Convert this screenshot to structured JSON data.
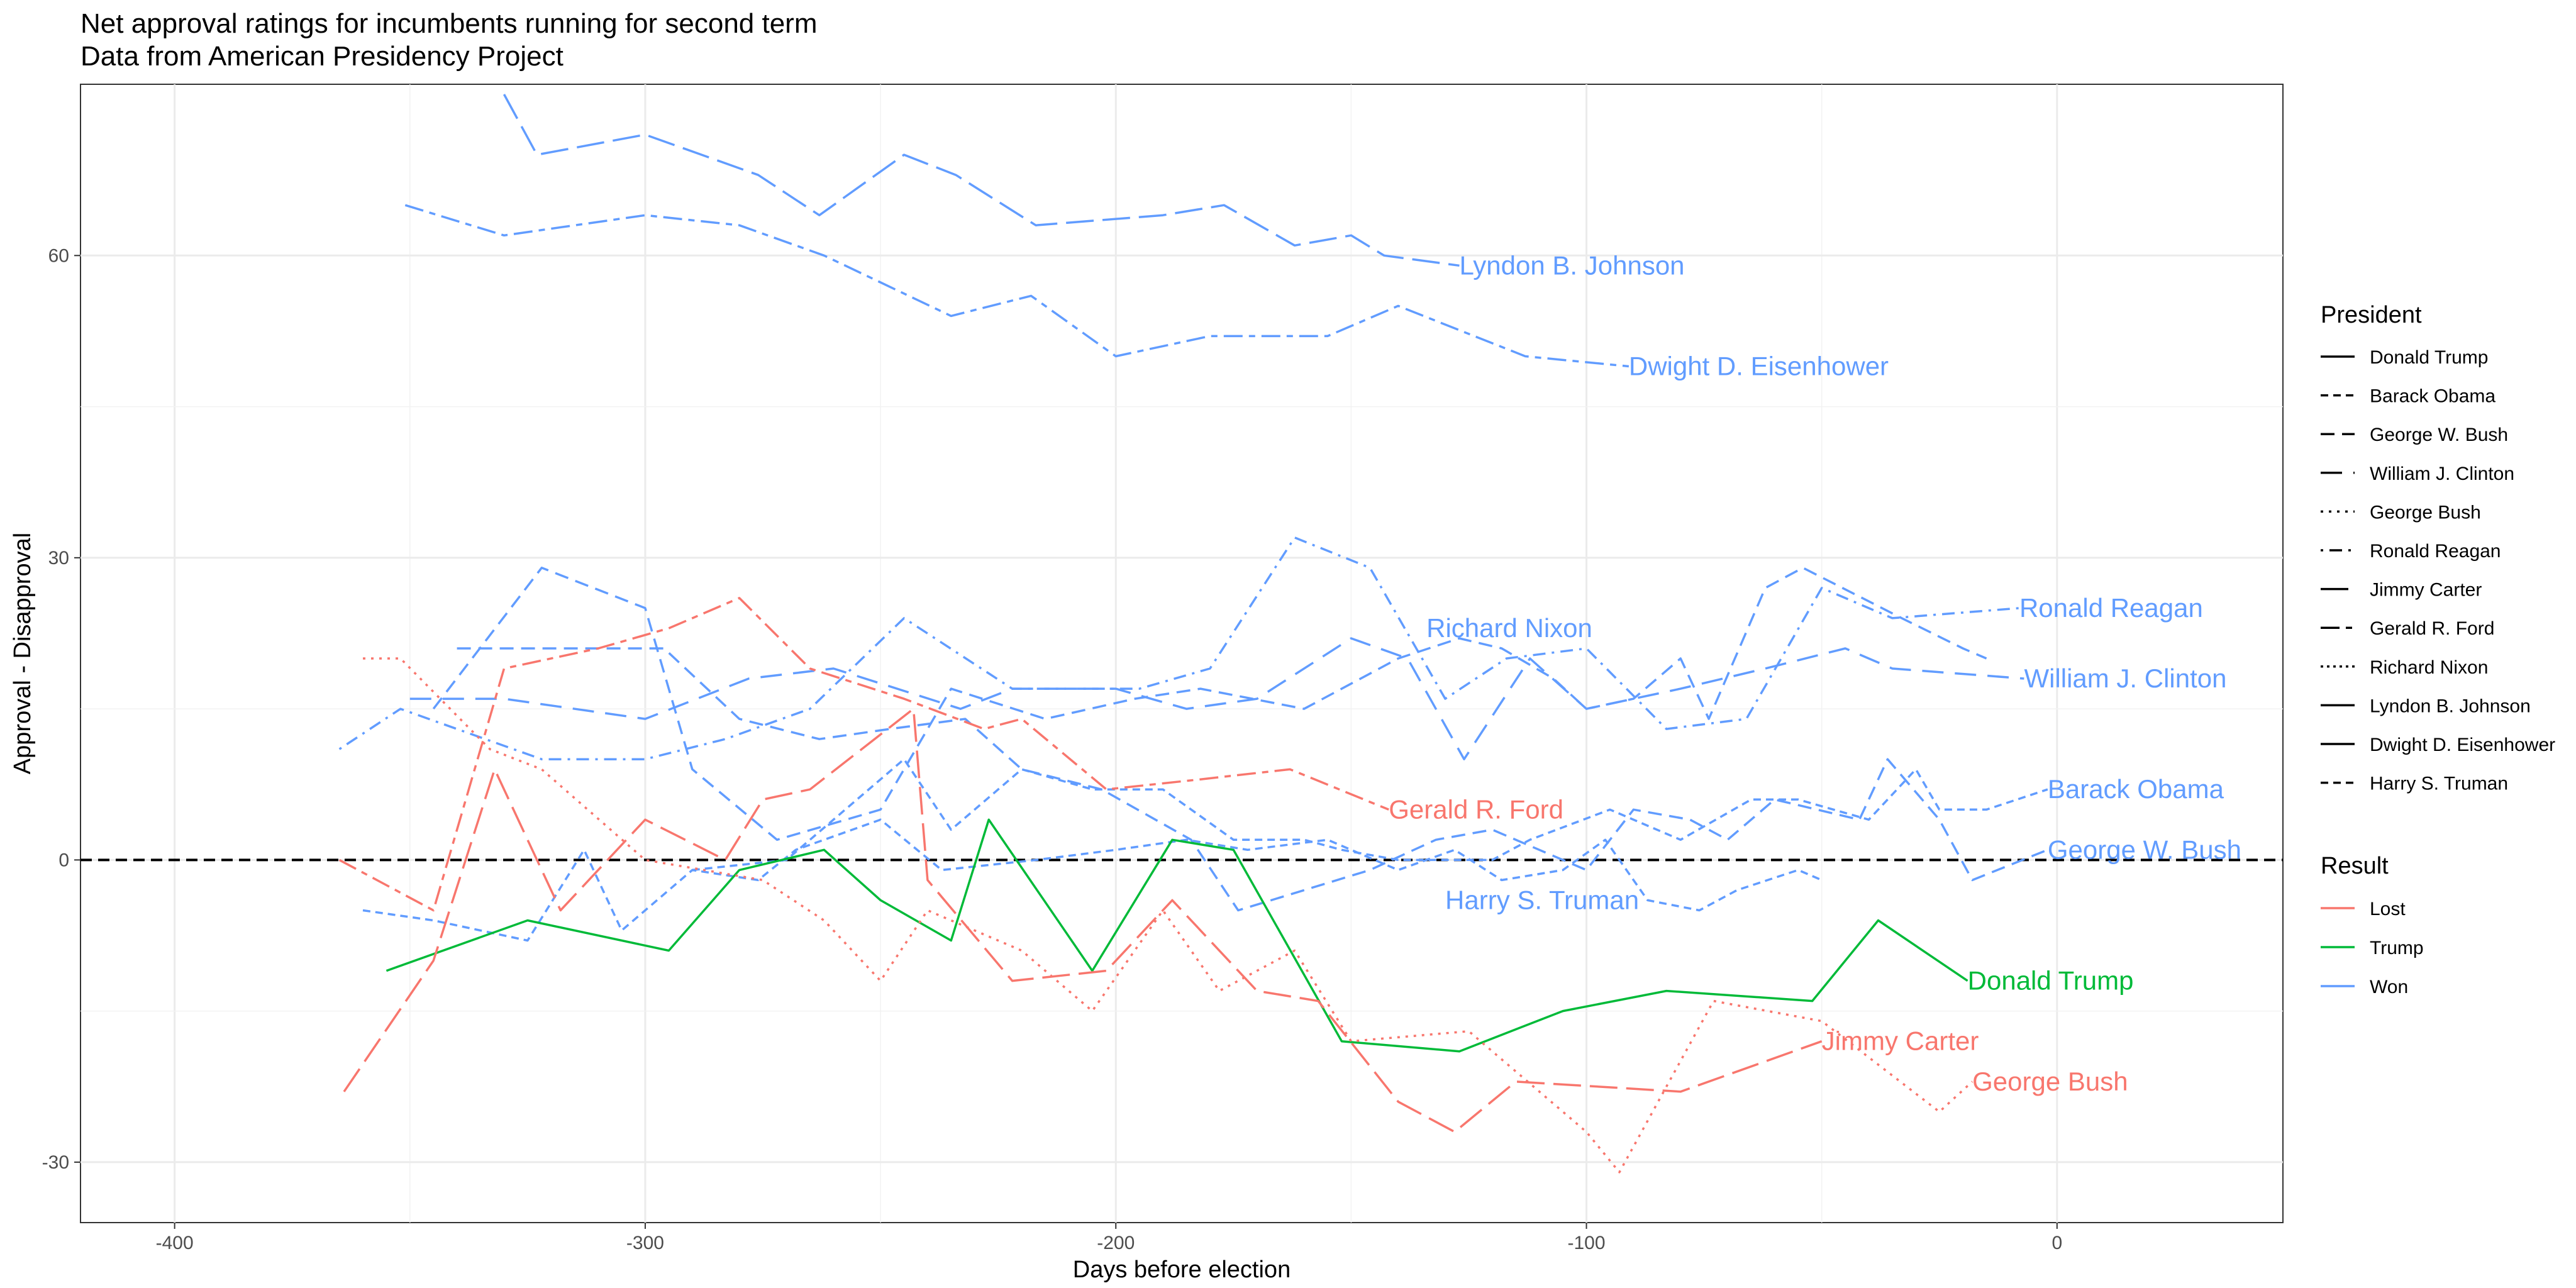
{
  "chart_data": {
    "type": "line",
    "title": "Net approval ratings for incumbents running for second term",
    "subtitle": "Data from American Presidency Project",
    "xlabel": "Days before election",
    "ylabel": "Approval - Disapproval",
    "xlim": [
      -420,
      48
    ],
    "ylim": [
      -36,
      77
    ],
    "x_ticks": [
      -400,
      -300,
      -200,
      -100,
      0
    ],
    "y_ticks": [
      -30,
      0,
      30,
      60
    ],
    "grid": true,
    "reference_line": {
      "y": 0,
      "style": "dashed"
    },
    "colors": {
      "Lost": "#F8766D",
      "Trump": "#00BA38",
      "Won": "#619CFF"
    },
    "legend": {
      "placement": "right",
      "president_title": "President",
      "result_title": "Result",
      "presidents": [
        {
          "name": "Donald Trump",
          "dash": "solid"
        },
        {
          "name": "Barack Obama",
          "dash": "dashed-fine"
        },
        {
          "name": "George W. Bush",
          "dash": "dashed"
        },
        {
          "name": "William J. Clinton",
          "dash": "dashed-wide"
        },
        {
          "name": "George Bush",
          "dash": "dotted"
        },
        {
          "name": "Ronald Reagan",
          "dash": "dotdash"
        },
        {
          "name": "Jimmy Carter",
          "dash": "longdash"
        },
        {
          "name": "Gerald R. Ford",
          "dash": "twodash"
        },
        {
          "name": "Richard Nixon",
          "dash": "dotted-dense"
        },
        {
          "name": "Lyndon B. Johnson",
          "dash": "solid"
        },
        {
          "name": "Dwight D. Eisenhower",
          "dash": "solid"
        },
        {
          "name": "Harry S. Truman",
          "dash": "dashed-fine"
        }
      ],
      "results": [
        "Lost",
        "Trump",
        "Won"
      ]
    },
    "series": [
      {
        "name": "Lyndon B. Johnson",
        "result": "Won",
        "dash": "longdash",
        "label": "Lyndon B. Johnson",
        "label_at": [
          -127,
          59
        ],
        "x": [
          -330,
          -323,
          -300,
          -276,
          -263,
          -245,
          -234,
          -217,
          -190,
          -177,
          -162,
          -150,
          -143,
          -127
        ],
        "y": [
          76,
          70,
          72,
          68,
          64,
          70,
          68,
          63,
          64,
          65,
          61,
          62,
          60,
          59
        ]
      },
      {
        "name": "Dwight D. Eisenhower",
        "result": "Won",
        "dash": "twodash",
        "label": "Dwight D. Eisenhower",
        "label_at": [
          -91,
          49
        ],
        "x": [
          -351,
          -330,
          -300,
          -280,
          -262,
          -235,
          -218,
          -200,
          -180,
          -155,
          -140,
          -113,
          -91
        ],
        "y": [
          65,
          62,
          64,
          63,
          60,
          54,
          56,
          50,
          52,
          52,
          55,
          50,
          49
        ]
      },
      {
        "name": "Ronald Reagan",
        "result": "Won",
        "dash": "dotdash",
        "label": "Ronald Reagan",
        "label_at": [
          -8,
          25
        ],
        "x": [
          -365,
          -352,
          -322,
          -300,
          -283,
          -265,
          -245,
          -222,
          -195,
          -180,
          -162,
          -146,
          -130,
          -117,
          -100,
          -83,
          -66,
          -50,
          -35,
          -8
        ],
        "y": [
          11,
          15,
          10,
          10,
          12,
          15,
          24,
          17,
          17,
          19,
          32,
          29,
          16,
          20,
          21,
          13,
          14,
          27,
          24,
          25
        ]
      },
      {
        "name": "William J. Clinton",
        "result": "Won",
        "dash": "dashed-wide",
        "label": "William J. Clinton",
        "label_at": [
          -7,
          18
        ],
        "x": [
          -350,
          -330,
          -300,
          -278,
          -260,
          -233,
          -222,
          -200,
          -185,
          -170,
          -150,
          -138,
          -126,
          -112,
          -100,
          -80,
          -62,
          -45,
          -35,
          -7
        ],
        "y": [
          16,
          16,
          14,
          18,
          19,
          15,
          17,
          17,
          15,
          16,
          22,
          20,
          10,
          20,
          15,
          17,
          19,
          21,
          19,
          18
        ]
      },
      {
        "name": "Richard Nixon",
        "result": "Won",
        "dash": "dashed",
        "label": "Richard Nixon",
        "label_at": [
          -134,
          23
        ],
        "x": [
          -345,
          -322,
          -300,
          -290,
          -272,
          -250,
          -235,
          -215,
          -196,
          -182,
          -160,
          -140,
          -127,
          -118,
          -107,
          -100,
          -90,
          -80,
          -74,
          -62,
          -54,
          -33,
          -20,
          -15
        ],
        "y": [
          15,
          29,
          25,
          9,
          2,
          5,
          17,
          14,
          16,
          17,
          15,
          20,
          22,
          21,
          18,
          15,
          16,
          20,
          14,
          27,
          29,
          24,
          21,
          20
        ]
      },
      {
        "name": "Barack Obama",
        "result": "Won",
        "dash": "dashed-fine",
        "label": "Barack Obama",
        "label_at": [
          -2,
          7
        ],
        "x": [
          -290,
          -270,
          -245,
          -235,
          -220,
          -205,
          -190,
          -175,
          -160,
          -152,
          -140,
          -120,
          -112,
          -95,
          -80,
          -65,
          -55,
          -40,
          -30,
          -25,
          -15,
          -2
        ],
        "y": [
          -1,
          0,
          10,
          3,
          9,
          7,
          7,
          2,
          2,
          1,
          0,
          0,
          2,
          5,
          2,
          6,
          6,
          4,
          9,
          5,
          5,
          7
        ]
      },
      {
        "name": "George W. Bush",
        "result": "Won",
        "dash": "dashed",
        "label": "George W. Bush",
        "label_at": [
          -2,
          1
        ],
        "x": [
          -340,
          -320,
          -310,
          -296,
          -280,
          -263,
          -248,
          -232,
          -220,
          -203,
          -184,
          -174,
          -160,
          -146,
          -132,
          -120,
          -100,
          -90,
          -78,
          -70,
          -60,
          -42,
          -36,
          -25,
          -18,
          -2
        ],
        "y": [
          21,
          21,
          21,
          21,
          14,
          12,
          13,
          14,
          9,
          7,
          2,
          -5,
          -3,
          -1,
          2,
          3,
          -1,
          5,
          4,
          2,
          6,
          4,
          10,
          4,
          -2,
          1
        ]
      },
      {
        "name": "Harry S. Truman",
        "result": "Won",
        "dash": "dashed-fine",
        "label": "Harry S. Truman",
        "label_at": [
          -130,
          -4
        ],
        "x": [
          -360,
          -345,
          -325,
          -313,
          -305,
          -290,
          -276,
          -268,
          -250,
          -237,
          -217,
          -200,
          -185,
          -172,
          -155,
          -140,
          -128,
          -118,
          -105,
          -96,
          -87,
          -76,
          -68,
          -55,
          -50
        ],
        "y": [
          -5,
          -6,
          -8,
          1,
          -7,
          -1,
          -2,
          1,
          4,
          -1,
          0,
          1,
          2,
          1,
          2,
          -1,
          1,
          -2,
          -1,
          2,
          -4,
          -5,
          -3,
          -1,
          -2
        ]
      },
      {
        "name": "Donald Trump",
        "result": "Trump",
        "dash": "solid",
        "label": "Donald Trump",
        "label_at": [
          -19,
          -12
        ],
        "x": [
          -355,
          -325,
          -295,
          -280,
          -262,
          -250,
          -235,
          -227,
          -205,
          -188,
          -175,
          -152,
          -127,
          -105,
          -83,
          -52,
          -38,
          -19
        ],
        "y": [
          -11,
          -6,
          -9,
          -1,
          1,
          -4,
          -8,
          4,
          -11,
          2,
          1,
          -18,
          -19,
          -15,
          -13,
          -14,
          -6,
          -12
        ]
      },
      {
        "name": "Gerald R. Ford",
        "result": "Lost",
        "dash": "twodash",
        "label": "Gerald R. Ford",
        "label_at": [
          -142,
          5
        ],
        "x": [
          -365,
          -345,
          -330,
          -310,
          -295,
          -280,
          -265,
          -245,
          -228,
          -220,
          -202,
          -182,
          -163,
          -142
        ],
        "y": [
          0,
          -5,
          19,
          21,
          23,
          26,
          19,
          16,
          13,
          14,
          7,
          8,
          9,
          5
        ]
      },
      {
        "name": "Jimmy Carter",
        "result": "Lost",
        "dash": "longdash",
        "label": "Jimmy Carter",
        "label_at": [
          -50,
          -18
        ],
        "x": [
          -364,
          -345,
          -332,
          -318,
          -300,
          -283,
          -275,
          -265,
          -243,
          -240,
          -222,
          -202,
          -188,
          -170,
          -157,
          -140,
          -128,
          -115,
          -80,
          -50
        ],
        "y": [
          -23,
          -10,
          9,
          -5,
          4,
          0,
          6,
          7,
          15,
          -2,
          -12,
          -11,
          -4,
          -13,
          -14,
          -24,
          -27,
          -22,
          -23,
          -18
        ]
      },
      {
        "name": "George Bush",
        "result": "Lost",
        "dash": "dotted",
        "label": "George Bush",
        "label_at": [
          -18,
          -22
        ],
        "x": [
          -360,
          -352,
          -333,
          -322,
          -300,
          -275,
          -262,
          -250,
          -240,
          -220,
          -205,
          -190,
          -178,
          -162,
          -150,
          -125,
          -100,
          -93,
          -73,
          -50,
          -25,
          -18
        ],
        "y": [
          20,
          20,
          11,
          9,
          0,
          -2,
          -6,
          -12,
          -5,
          -9,
          -15,
          -5,
          -13,
          -9,
          -18,
          -17,
          -27,
          -31,
          -14,
          -16,
          -25,
          -22
        ]
      }
    ]
  }
}
